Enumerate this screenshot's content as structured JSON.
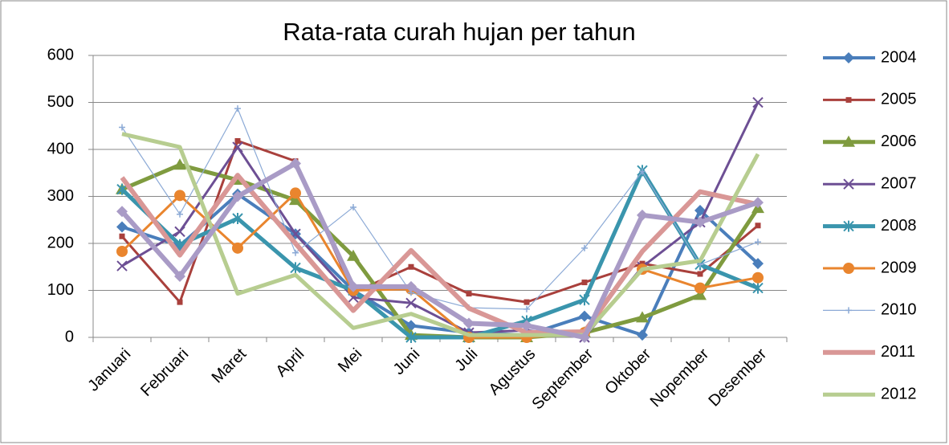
{
  "chart_data": {
    "type": "line",
    "title": "Rata-rata curah hujan per tahun",
    "categories": [
      "Januari",
      "Februari",
      "Maret",
      "April",
      "Mei",
      "Juni",
      "Juli",
      "Agustus",
      "September",
      "Oktober",
      "Nopember",
      "Desember"
    ],
    "ylim": [
      0,
      600
    ],
    "yticks": [
      0,
      100,
      200,
      300,
      400,
      500,
      600
    ],
    "grid": true,
    "legend": "right",
    "series": [
      {
        "name": "2004",
        "color": "#4a7ebb",
        "marker": "diamond",
        "line_width": 4,
        "values": [
          235,
          195,
          305,
          220,
          100,
          25,
          10,
          5,
          45,
          5,
          270,
          157
        ]
      },
      {
        "name": "2005",
        "color": "#a9403c",
        "marker": "square",
        "line_width": 3,
        "values": [
          215,
          75,
          418,
          375,
          95,
          150,
          93,
          75,
          117,
          157,
          135,
          238
        ]
      },
      {
        "name": "2006",
        "color": "#7f9b3f",
        "marker": "triangle",
        "line_width": 5,
        "values": [
          315,
          367,
          335,
          292,
          173,
          5,
          0,
          0,
          10,
          42,
          90,
          275
        ]
      },
      {
        "name": "2007",
        "color": "#6d4f94",
        "marker": "x",
        "line_width": 3,
        "values": [
          152,
          225,
          405,
          220,
          85,
          73,
          10,
          15,
          0,
          150,
          245,
          500
        ]
      },
      {
        "name": "2008",
        "color": "#3a95ad",
        "marker": "asterisk",
        "line_width": 5,
        "values": [
          315,
          197,
          253,
          148,
          100,
          0,
          0,
          35,
          80,
          355,
          155,
          105
        ]
      },
      {
        "name": "2009",
        "color": "#e9852e",
        "marker": "circle",
        "line_width": 3,
        "values": [
          183,
          302,
          190,
          307,
          100,
          103,
          0,
          0,
          10,
          145,
          105,
          127
        ]
      },
      {
        "name": "2010",
        "color": "#8caad6",
        "marker": "plus",
        "line_width": 1.2,
        "values": [
          447,
          262,
          487,
          180,
          277,
          95,
          63,
          60,
          190,
          353,
          155,
          203
        ]
      },
      {
        "name": "2011",
        "color": "#d99796",
        "marker": "none",
        "line_width": 6,
        "values": [
          340,
          175,
          345,
          200,
          57,
          185,
          62,
          10,
          12,
          183,
          310,
          283
        ]
      },
      {
        "name": "2012",
        "color": "#b7cd90",
        "marker": "none",
        "line_width": 5,
        "values": [
          433,
          405,
          93,
          133,
          20,
          50,
          5,
          5,
          5,
          145,
          163,
          390
        ]
      },
      {
        "color": "#a99bc6",
        "marker": "diamond",
        "line_width": 6,
        "values": [
          268,
          130,
          300,
          370,
          108,
          108,
          30,
          25,
          0,
          260,
          245,
          287
        ]
      }
    ]
  }
}
